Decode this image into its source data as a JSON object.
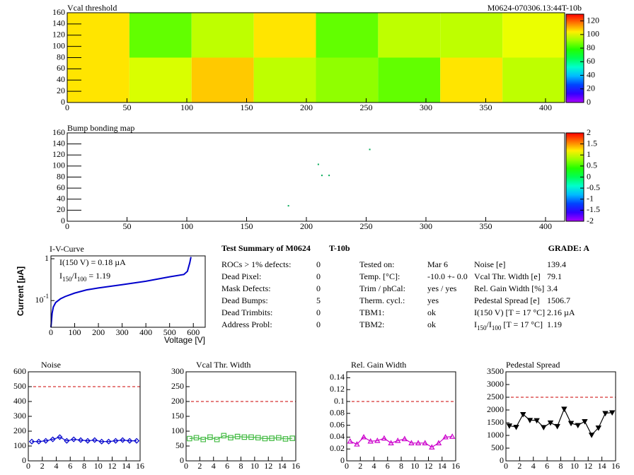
{
  "chart_data": [
    {
      "type": "heatmap",
      "title": "Vcal threshold",
      "title_right": "M0624-070306.13:44T-10b",
      "xlim": [
        0,
        416
      ],
      "ylim": [
        0,
        160
      ],
      "xticks": [
        0,
        50,
        100,
        150,
        200,
        250,
        300,
        350,
        400
      ],
      "yticks": [
        0,
        20,
        40,
        60,
        80,
        100,
        120,
        140,
        160
      ],
      "x_edges": [
        0,
        52,
        104,
        156,
        208,
        260,
        312,
        364,
        416
      ],
      "y_edges": [
        0,
        80,
        160
      ],
      "values": [
        [
          105,
          98,
          108,
          95,
          90,
          85,
          105,
          95
        ],
        [
          105,
          85,
          95,
          105,
          85,
          95,
          95,
          100
        ]
      ],
      "zlim": [
        0,
        130
      ],
      "zticks": [
        0,
        20,
        40,
        60,
        80,
        100,
        120
      ]
    },
    {
      "type": "scatter",
      "title": "Bump bonding map",
      "xlim": [
        0,
        416
      ],
      "ylim": [
        0,
        160
      ],
      "xticks": [
        0,
        50,
        100,
        150,
        200,
        250,
        300,
        350,
        400
      ],
      "yticks": [
        0,
        20,
        40,
        60,
        80,
        100,
        120,
        140,
        160
      ],
      "x": [
        253,
        210,
        213,
        219,
        185
      ],
      "values": [
        130,
        103,
        83,
        83,
        28
      ],
      "color": "#00aa55",
      "zlim": [
        -2,
        2
      ],
      "zticks": [
        -2,
        -1.5,
        -1,
        -0.5,
        0,
        0.5,
        1,
        1.5,
        2
      ]
    },
    {
      "type": "line",
      "title": "I-V-Curve",
      "x_label": "Voltage [V]",
      "y_label": "Current [µA]",
      "log_y": true,
      "xlim": [
        0,
        650
      ],
      "ylim": [
        0.023,
        1.17
      ],
      "xticks": [
        0,
        100,
        200,
        300,
        400,
        500,
        600
      ],
      "yticks": [
        {
          "value": 0.1,
          "label": [
            "10",
            "-1"
          ]
        },
        1
      ],
      "x": [
        0,
        5,
        10,
        20,
        40,
        60,
        100,
        150,
        200,
        300,
        400,
        500,
        560,
        575,
        585,
        590
      ],
      "values": [
        0.023,
        0.05,
        0.07,
        0.09,
        0.11,
        0.125,
        0.151,
        0.18,
        0.2,
        0.24,
        0.29,
        0.37,
        0.42,
        0.5,
        0.8,
        1.1
      ],
      "color": "#0000cc",
      "annotations": [
        "I(150 V) = 0.18 µA",
        [
          "I",
          "150",
          "/I",
          "100",
          " =  1.19"
        ]
      ]
    },
    {
      "type": "line",
      "title": "Noise",
      "marker": "diamond",
      "color": "#0000cc",
      "xlim": [
        0,
        16
      ],
      "ylim": [
        0,
        600
      ],
      "xticks": [
        0,
        2,
        4,
        6,
        8,
        10,
        12,
        14,
        16
      ],
      "yticks": [
        0,
        100,
        200,
        300,
        400,
        500,
        600
      ],
      "x": [
        0.5,
        1.5,
        2.5,
        3.5,
        4.5,
        5.5,
        6.5,
        7.5,
        8.5,
        9.5,
        10.5,
        11.5,
        12.5,
        13.5,
        14.5,
        15.5
      ],
      "values": [
        130,
        130,
        135,
        145,
        160,
        135,
        145,
        140,
        135,
        140,
        130,
        130,
        135,
        140,
        135,
        135
      ],
      "threshold": 500,
      "threshold_color": "#cc0000"
    },
    {
      "type": "line",
      "title": "Vcal Thr. Width",
      "marker": "square",
      "color": "#44bb44",
      "xlim": [
        0,
        16
      ],
      "ylim": [
        0,
        300
      ],
      "xticks": [
        0,
        2,
        4,
        6,
        8,
        10,
        12,
        14,
        16
      ],
      "yticks": [
        0,
        50,
        100,
        150,
        200,
        250,
        300
      ],
      "x": [
        0.5,
        1.5,
        2.5,
        3.5,
        4.5,
        5.5,
        6.5,
        7.5,
        8.5,
        9.5,
        10.5,
        11.5,
        12.5,
        13.5,
        14.5,
        15.5
      ],
      "values": [
        75,
        78,
        72,
        80,
        72,
        85,
        78,
        82,
        80,
        80,
        78,
        75,
        76,
        78,
        74,
        76
      ],
      "threshold": 200,
      "threshold_color": "#cc0000"
    },
    {
      "type": "line",
      "title": "Rel. Gain Width",
      "marker": "triangle",
      "color": "#cc00cc",
      "xlim": [
        0,
        16
      ],
      "ylim": [
        0,
        0.15
      ],
      "xticks": [
        0,
        2,
        4,
        6,
        8,
        10,
        12,
        14,
        16
      ],
      "yticks": [
        0,
        0.02,
        0.04,
        0.06,
        0.08,
        0.1,
        0.12,
        0.14
      ],
      "x": [
        0.5,
        1.5,
        2.5,
        3.5,
        4.5,
        5.5,
        6.5,
        7.5,
        8.5,
        9.5,
        10.5,
        11.5,
        12.5,
        13.5,
        14.5,
        15.5
      ],
      "values": [
        0.033,
        0.028,
        0.04,
        0.033,
        0.034,
        0.038,
        0.03,
        0.034,
        0.037,
        0.03,
        0.03,
        0.03,
        0.023,
        0.03,
        0.04,
        0.041
      ],
      "threshold": 0.1,
      "threshold_color": "#cc0000"
    },
    {
      "type": "line",
      "title": "Pedestal Spread",
      "marker": "triangle-down",
      "color": "#000000",
      "xlim": [
        0,
        16
      ],
      "ylim": [
        0,
        3500
      ],
      "xticks": [
        0,
        2,
        4,
        6,
        8,
        10,
        12,
        14,
        16
      ],
      "yticks": [
        0,
        500,
        1000,
        1500,
        2000,
        2500,
        3000,
        3500
      ],
      "x": [
        0.5,
        1.5,
        2.5,
        3.5,
        4.5,
        5.5,
        6.5,
        7.5,
        8.5,
        9.5,
        10.5,
        11.5,
        12.5,
        13.5,
        14.5,
        15.5
      ],
      "values": [
        1380,
        1330,
        1830,
        1600,
        1590,
        1320,
        1500,
        1360,
        2040,
        1480,
        1400,
        1550,
        1020,
        1300,
        1870,
        1900
      ],
      "threshold": 2500,
      "threshold_color": "#cc0000"
    }
  ],
  "summary": {
    "title": "Test Summary of M0624",
    "module_tag": "T-10b",
    "grade": "GRADE:  A",
    "columns": [
      [
        [
          "ROCs > 1% defects:",
          "0"
        ],
        [
          "Dead Pixel:",
          "0"
        ],
        [
          "Mask Defects:",
          "0"
        ],
        [
          "Dead Bumps:",
          "5"
        ],
        [
          "Dead Trimbits:",
          "0"
        ],
        [
          "Address Probl:",
          "0"
        ]
      ],
      [
        [
          "Tested on:",
          "Mar 6"
        ],
        [
          "Temp. [°C]:",
          "-10.0 +- 0.0"
        ],
        [
          "Trim / phCal:",
          "yes / yes"
        ],
        [
          "Therm. cycl.:",
          "yes"
        ],
        [
          "TBM1:",
          "ok"
        ],
        [
          "TBM2:",
          "ok"
        ]
      ],
      [
        [
          "Noise [e]",
          "139.4"
        ],
        [
          "Vcal Thr. Width [e]",
          "79.1"
        ],
        [
          "Rel. Gain Width [%]",
          "3.4"
        ],
        [
          "Pedestal Spread [e]",
          "1506.7"
        ],
        [
          "I(150 V) [T = 17 °C]",
          "2.16 µA"
        ],
        [
          [
            "I",
            "150",
            "/I",
            "100",
            " [T = 17 °C]"
          ],
          "1.19"
        ]
      ]
    ]
  }
}
